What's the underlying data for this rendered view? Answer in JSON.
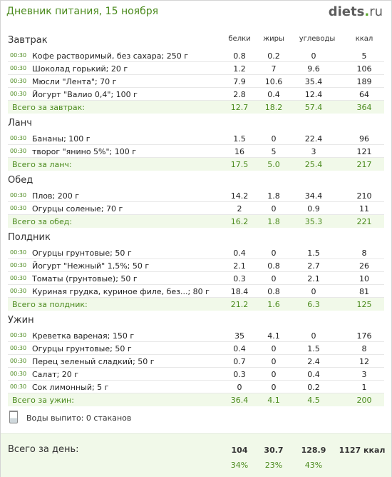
{
  "header": {
    "title": "Дневник питания, 15 ноября",
    "logo_main": "diets",
    "logo_dot": ".",
    "logo_tld": "ru"
  },
  "columns": {
    "protein": "белки",
    "fat": "жиры",
    "carbs": "углеводы",
    "kcal": "ккал"
  },
  "meals": [
    {
      "title": "Завтрак",
      "items": [
        {
          "time": "00:30",
          "name": "Кофе растворимый, без сахара; 250 г",
          "protein": "0.8",
          "fat": "0.2",
          "carbs": "0",
          "kcal": "5"
        },
        {
          "time": "00:30",
          "name": "Шоколад горький; 20 г",
          "protein": "1.2",
          "fat": "7",
          "carbs": "9.6",
          "kcal": "106"
        },
        {
          "time": "00:30",
          "name": "Мюсли \"Лента\"; 70 г",
          "protein": "7.9",
          "fat": "10.6",
          "carbs": "35.4",
          "kcal": "189"
        },
        {
          "time": "00:30",
          "name": "Йогурт \"Валио 0,4\"; 100 г",
          "protein": "2.8",
          "fat": "0.4",
          "carbs": "12.4",
          "kcal": "64"
        }
      ],
      "total": {
        "label": "Всего за завтрак:",
        "protein": "12.7",
        "fat": "18.2",
        "carbs": "57.4",
        "kcal": "364"
      }
    },
    {
      "title": "Ланч",
      "items": [
        {
          "time": "00:30",
          "name": "Бананы; 100 г",
          "protein": "1.5",
          "fat": "0",
          "carbs": "22.4",
          "kcal": "96"
        },
        {
          "time": "00:30",
          "name": "творог \"янино 5%\"; 100 г",
          "protein": "16",
          "fat": "5",
          "carbs": "3",
          "kcal": "121"
        }
      ],
      "total": {
        "label": "Всего за ланч:",
        "protein": "17.5",
        "fat": "5.0",
        "carbs": "25.4",
        "kcal": "217"
      }
    },
    {
      "title": "Обед",
      "items": [
        {
          "time": "00:30",
          "name": "Плов; 200 г",
          "protein": "14.2",
          "fat": "1.8",
          "carbs": "34.4",
          "kcal": "210"
        },
        {
          "time": "00:30",
          "name": "Огурцы соленые; 70 г",
          "protein": "2",
          "fat": "0",
          "carbs": "0.9",
          "kcal": "11"
        }
      ],
      "total": {
        "label": "Всего за обед:",
        "protein": "16.2",
        "fat": "1.8",
        "carbs": "35.3",
        "kcal": "221"
      }
    },
    {
      "title": "Полдник",
      "items": [
        {
          "time": "00:30",
          "name": "Огурцы грунтовые; 50 г",
          "protein": "0.4",
          "fat": "0",
          "carbs": "1.5",
          "kcal": "8"
        },
        {
          "time": "00:30",
          "name": "Йогурт \"Нежный\" 1,5%; 50 г",
          "protein": "2.1",
          "fat": "0.8",
          "carbs": "2.7",
          "kcal": "26"
        },
        {
          "time": "00:30",
          "name": "Томаты (грунтовые); 50 г",
          "protein": "0.3",
          "fat": "0",
          "carbs": "2.1",
          "kcal": "10"
        },
        {
          "time": "00:30",
          "name": "Куриная грудка, куриное филе, без...; 80 г",
          "protein": "18.4",
          "fat": "0.8",
          "carbs": "0",
          "kcal": "81"
        }
      ],
      "total": {
        "label": "Всего за полдник:",
        "protein": "21.2",
        "fat": "1.6",
        "carbs": "6.3",
        "kcal": "125"
      }
    },
    {
      "title": "Ужин",
      "items": [
        {
          "time": "00:30",
          "name": "Креветка вареная; 150 г",
          "protein": "35",
          "fat": "4.1",
          "carbs": "0",
          "kcal": "176"
        },
        {
          "time": "00:30",
          "name": "Огурцы грунтовые; 50 г",
          "protein": "0.4",
          "fat": "0",
          "carbs": "1.5",
          "kcal": "8"
        },
        {
          "time": "00:30",
          "name": "Перец зеленый сладкий; 50 г",
          "protein": "0.7",
          "fat": "0",
          "carbs": "2.4",
          "kcal": "12"
        },
        {
          "time": "00:30",
          "name": "Салат; 20 г",
          "protein": "0.3",
          "fat": "0",
          "carbs": "0.4",
          "kcal": "3"
        },
        {
          "time": "00:30",
          "name": "Сок лимонный; 5 г",
          "protein": "0",
          "fat": "0",
          "carbs": "0.2",
          "kcal": "1"
        }
      ],
      "total": {
        "label": "Всего за ужин:",
        "protein": "36.4",
        "fat": "4.1",
        "carbs": "4.5",
        "kcal": "200"
      }
    }
  ],
  "water": {
    "icon": "water-glass-icon",
    "text": "Воды выпито: 0 стаканов"
  },
  "day": {
    "label": "Всего за день:",
    "protein": "104",
    "fat": "30.7",
    "carbs": "128.9",
    "kcal": "1127 ккал",
    "protein_pct": "34%",
    "fat_pct": "23%",
    "carbs_pct": "43%"
  },
  "colors": {
    "accent_green": "#4a8a1c",
    "total_bg": "#f1f9e9"
  }
}
